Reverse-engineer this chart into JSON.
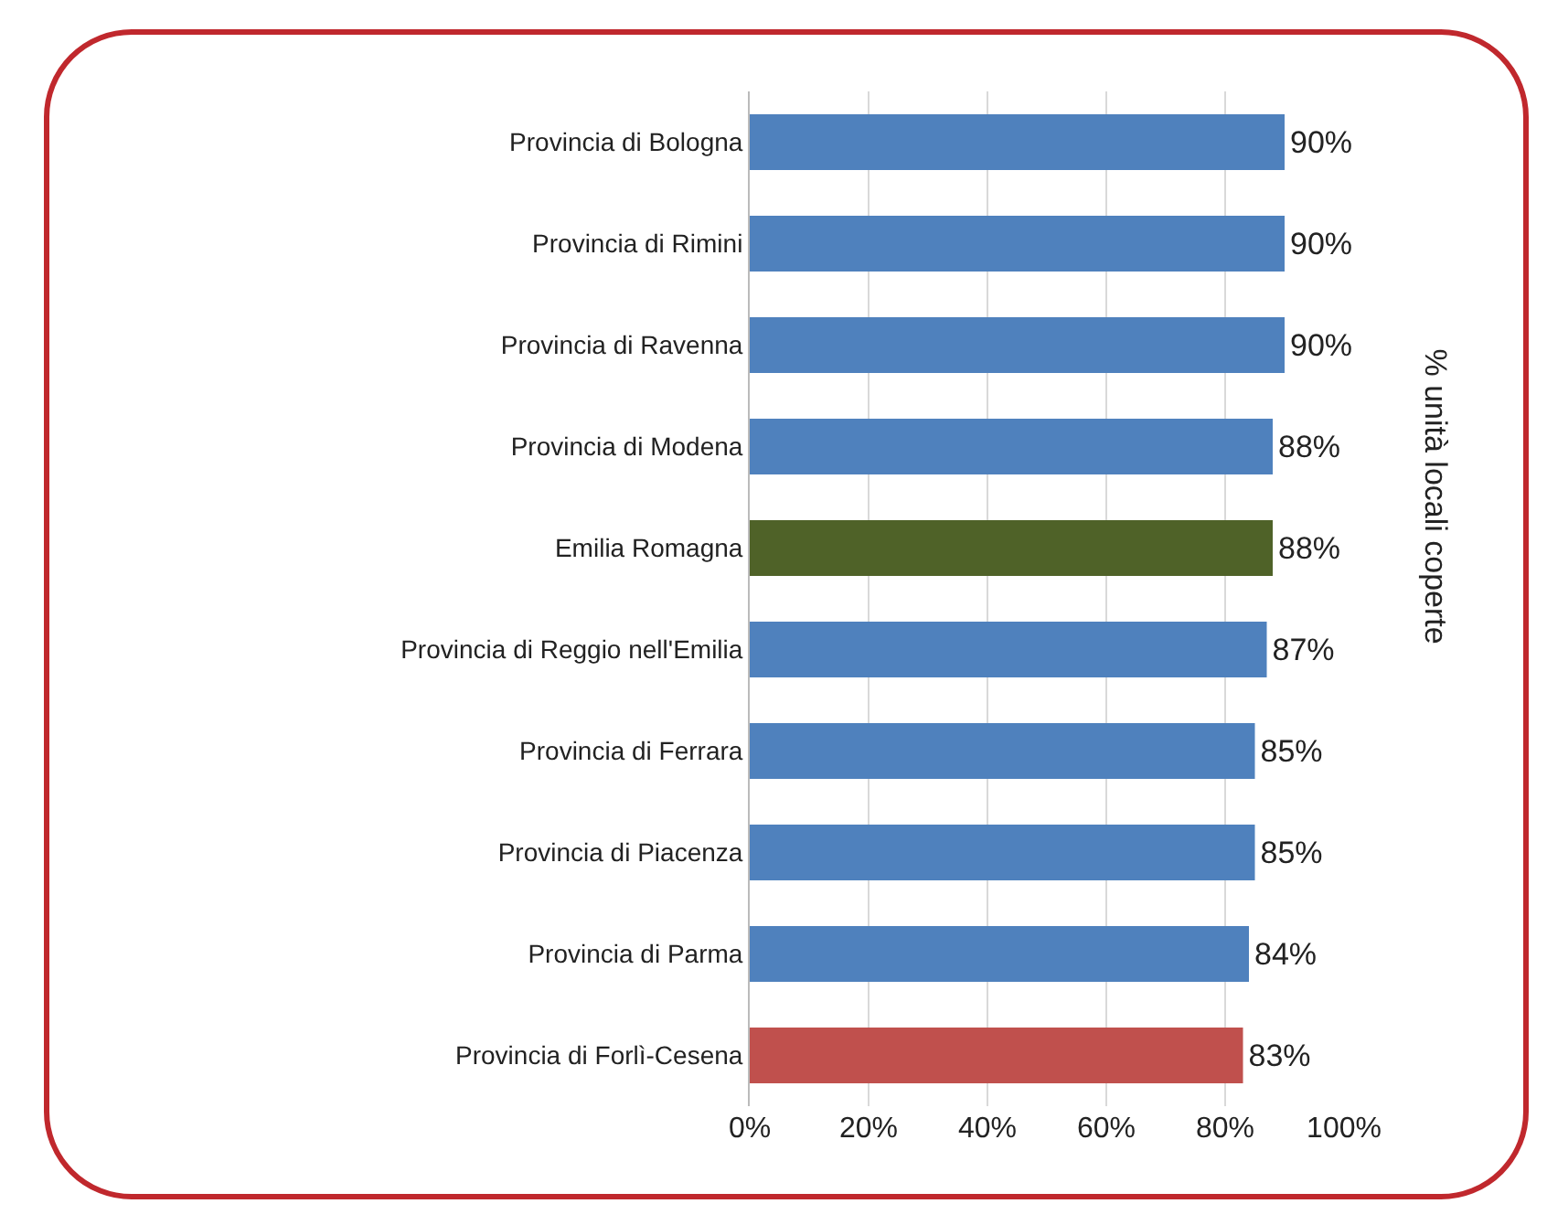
{
  "chart_data": {
    "type": "bar",
    "orientation": "horizontal",
    "categories": [
      "Provincia di Bologna",
      "Provincia di Rimini",
      "Provincia di Ravenna",
      "Provincia di Modena",
      "Emilia Romagna",
      "Provincia di Reggio nell'Emilia",
      "Provincia di Ferrara",
      "Provincia di Piacenza",
      "Provincia di Parma",
      "Provincia di Forlì-Cesena"
    ],
    "values": [
      90,
      90,
      90,
      88,
      88,
      87,
      85,
      85,
      84,
      83
    ],
    "colors": [
      "#4f81bd",
      "#4f81bd",
      "#4f81bd",
      "#4f81bd",
      "#4f6228",
      "#4f81bd",
      "#4f81bd",
      "#4f81bd",
      "#4f81bd",
      "#c0504d"
    ],
    "value_labels": [
      "90%",
      "90%",
      "90%",
      "88%",
      "88%",
      "87%",
      "85%",
      "85%",
      "84%",
      "83%"
    ],
    "xlim": [
      0,
      100
    ],
    "xticks": [
      {
        "value": 0,
        "label": "0%"
      },
      {
        "value": 20,
        "label": "20%"
      },
      {
        "value": 40,
        "label": "40%"
      },
      {
        "value": 60,
        "label": "60%"
      },
      {
        "value": 80,
        "label": "80%"
      },
      {
        "value": 100,
        "label": "100%"
      }
    ],
    "grid": "x",
    "annotations": [
      "% unità locali coperte"
    ]
  }
}
